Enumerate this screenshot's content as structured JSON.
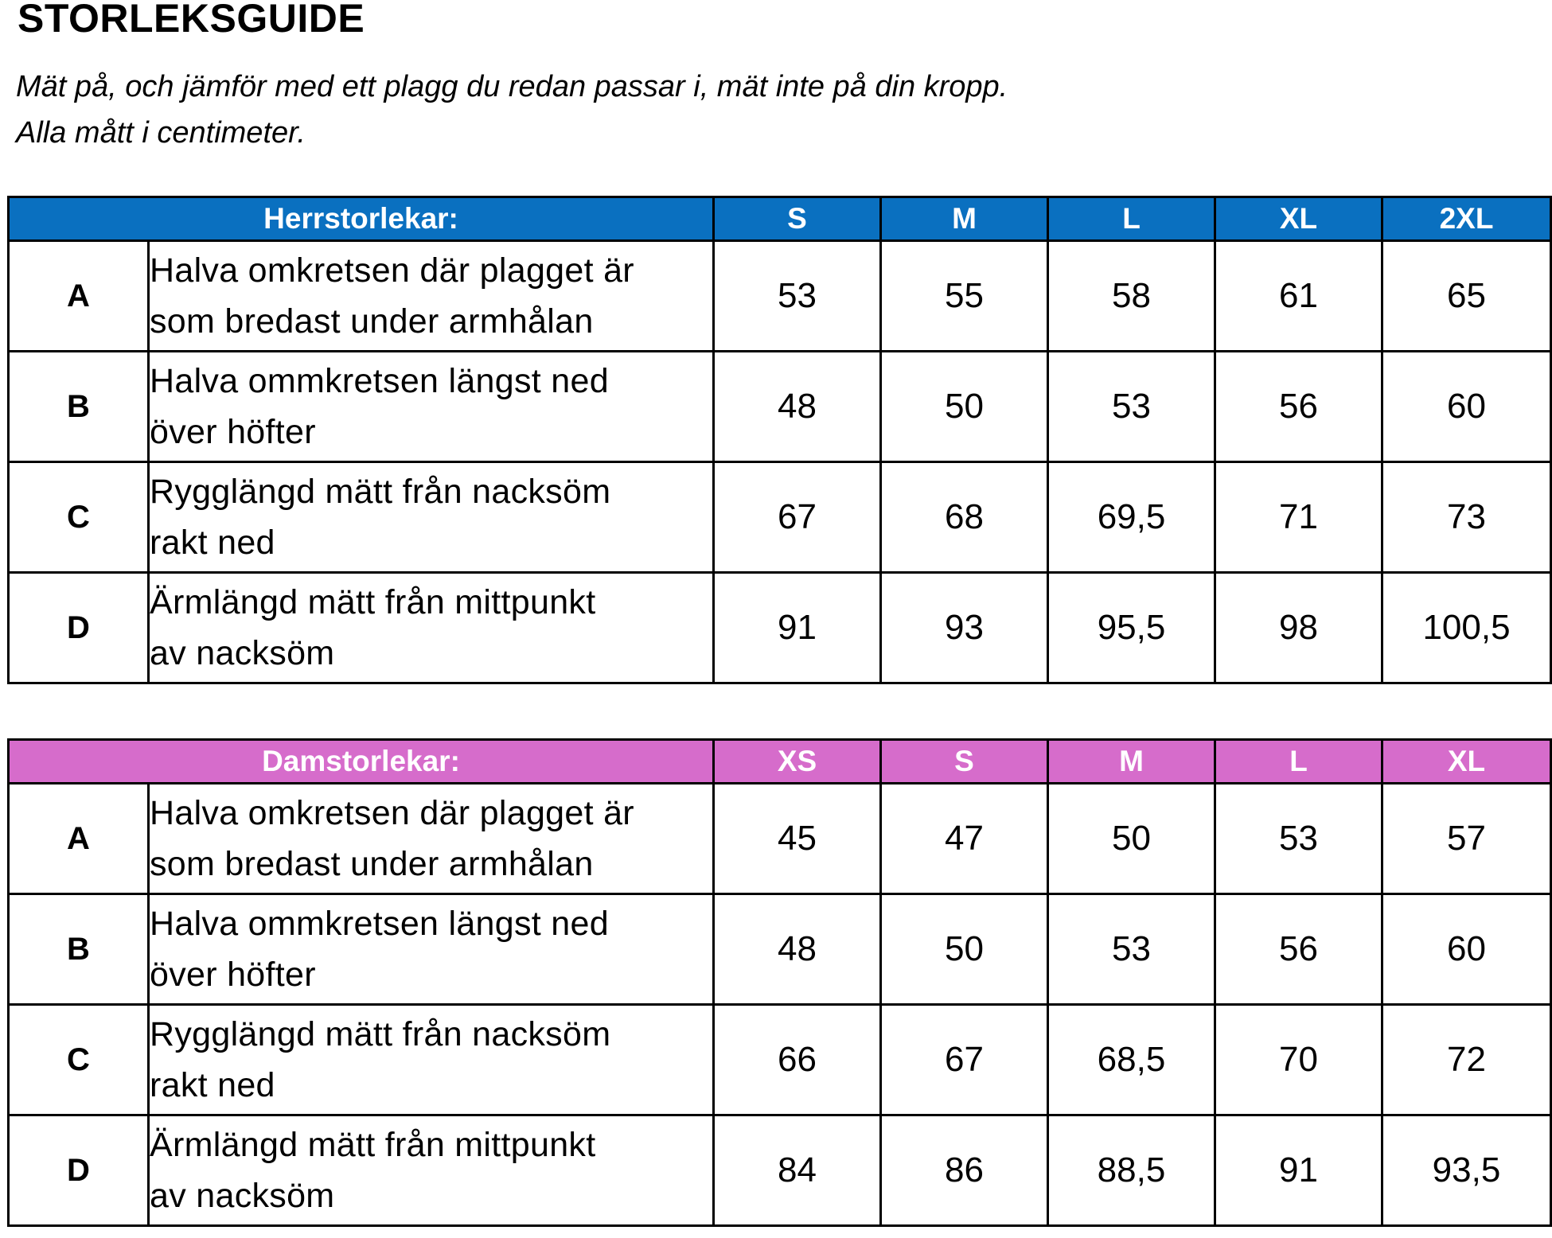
{
  "title": "STORLEKSGUIDE",
  "notes": [
    "Mät på, och jämför med ett plagg du redan passar i, mät inte på din kropp.",
    "Alla mått i centimeter."
  ],
  "colors": {
    "men_header": "#0a70c0",
    "women_header": "#d66ccb",
    "header_text": "#ffffff"
  },
  "men": {
    "heading": "Herrstorlekar:",
    "sizes": [
      "S",
      "M",
      "L",
      "XL",
      "2XL"
    ],
    "rows": [
      {
        "letter": "A",
        "desc1": "Halva omkretsen där plagget är",
        "desc2": "som bredast under armhålan",
        "values": [
          "53",
          "55",
          "58",
          "61",
          "65"
        ]
      },
      {
        "letter": "B",
        "desc1": "Halva ommkretsen längst ned",
        "desc2": "över höfter",
        "values": [
          "48",
          "50",
          "53",
          "56",
          "60"
        ]
      },
      {
        "letter": "C",
        "desc1": "Rygglängd mätt från nacksöm",
        "desc2": "rakt ned",
        "values": [
          "67",
          "68",
          "69,5",
          "71",
          "73"
        ]
      },
      {
        "letter": "D",
        "desc1": "Ärmlängd mätt från mittpunkt",
        "desc2": "av nacksöm",
        "values": [
          "91",
          "93",
          "95,5",
          "98",
          "100,5"
        ]
      }
    ]
  },
  "women": {
    "heading": "Damstorlekar:",
    "sizes": [
      "XS",
      "S",
      "M",
      "L",
      "XL"
    ],
    "rows": [
      {
        "letter": "A",
        "desc1": "Halva omkretsen där plagget är",
        "desc2": "som bredast under armhålan",
        "values": [
          "45",
          "47",
          "50",
          "53",
          "57"
        ]
      },
      {
        "letter": "B",
        "desc1": "Halva ommkretsen längst ned",
        "desc2": "över höfter",
        "values": [
          "48",
          "50",
          "53",
          "56",
          "60"
        ]
      },
      {
        "letter": "C",
        "desc1": "Rygglängd mätt från nacksöm",
        "desc2": "rakt ned",
        "values": [
          "66",
          "67",
          "68,5",
          "70",
          "72"
        ]
      },
      {
        "letter": "D",
        "desc1": "Ärmlängd mätt från mittpunkt",
        "desc2": "av nacksöm",
        "values": [
          "84",
          "86",
          "88,5",
          "91",
          "93,5"
        ]
      }
    ]
  }
}
